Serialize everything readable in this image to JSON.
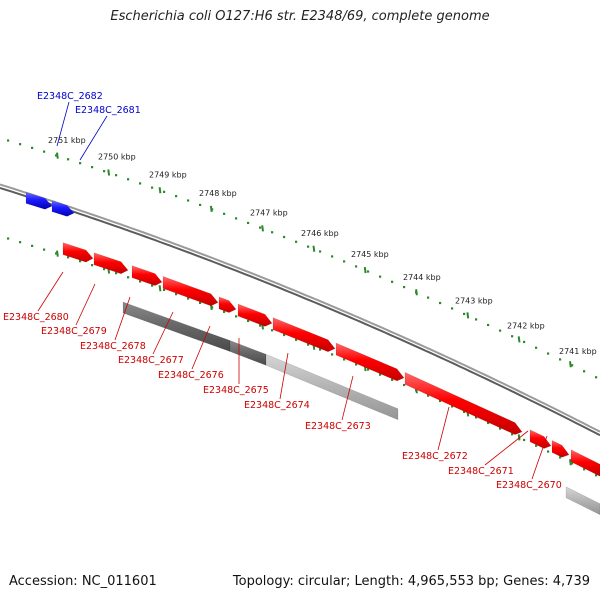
{
  "title": "Escherichia coli O127:H6 str. E2348/69, complete genome",
  "footer": {
    "accession": "Accession: NC_011601",
    "topology": "Topology: circular; Length: 4,965,553 bp; Genes: 4,739"
  },
  "colors": {
    "forward_gene": "#1a1aff",
    "reverse_gene": "#ff0000",
    "dark_feature": "#666666",
    "light_feature": "#b0b0b0",
    "backbone": "#808080",
    "ticks": "#2a8a2a",
    "forward_label": "#0000cc",
    "reverse_label": "#cc0000"
  },
  "scale_labels": [
    "2751 kbp",
    "2750 kbp",
    "2749 kbp",
    "2748 kbp",
    "2747 kbp",
    "2746 kbp",
    "2745 kbp",
    "2744 kbp",
    "2743 kbp",
    "2742 kbp",
    "2741 kbp"
  ],
  "forward_labels": [
    "E2348C_2682",
    "E2348C_2681"
  ],
  "reverse_labels": [
    "E2348C_2680",
    "E2348C_2679",
    "E2348C_2678",
    "E2348C_2677",
    "E2348C_2676",
    "E2348C_2675",
    "E2348C_2674",
    "E2348C_2673",
    "E2348C_2672",
    "E2348C_2671",
    "E2348C_2670"
  ]
}
